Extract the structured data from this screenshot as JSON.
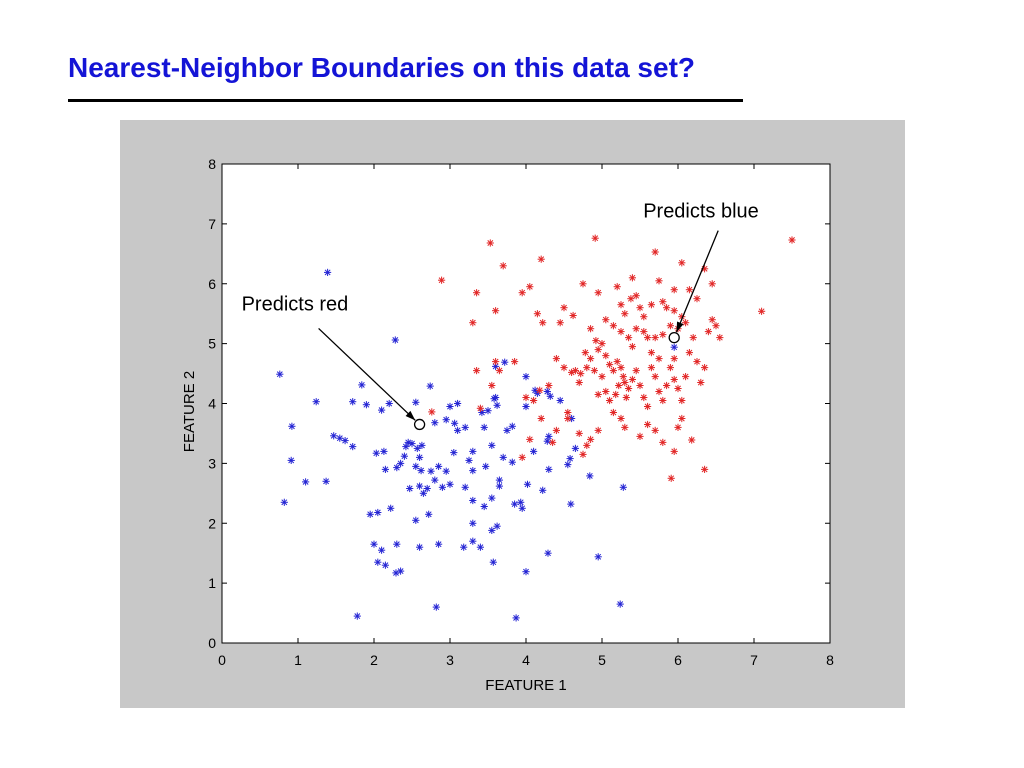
{
  "slide": {
    "title": "Nearest-Neighbor Boundaries on this data set?"
  },
  "colors": {
    "title": "#1414d6",
    "panel": "#c8c8c8",
    "plot_area": "#ffffff",
    "blue_points": "#2424d4",
    "red_points": "#e22626",
    "annotation": "#000000"
  },
  "chart_data": {
    "type": "scatter",
    "title": "",
    "xlabel": "FEATURE 1",
    "ylabel": "FEATURE 2",
    "xlim": [
      0,
      8
    ],
    "ylim": [
      0,
      8
    ],
    "xticks": [
      0,
      1,
      2,
      3,
      4,
      5,
      6,
      7,
      8
    ],
    "yticks": [
      0,
      1,
      2,
      3,
      4,
      5,
      6,
      7,
      8
    ],
    "grid": false,
    "legend": "none",
    "series": [
      {
        "marker": "asterisk",
        "color": "blue",
        "points": [
          [
            1.39,
            6.19
          ],
          [
            2.28,
            5.06
          ],
          [
            0.76,
            4.49
          ],
          [
            0.92,
            3.62
          ],
          [
            1.24,
            4.03
          ],
          [
            1.84,
            4.31
          ],
          [
            1.72,
            4.03
          ],
          [
            1.9,
            3.98
          ],
          [
            2.1,
            3.89
          ],
          [
            1.47,
            3.46
          ],
          [
            1.55,
            3.42
          ],
          [
            1.62,
            3.38
          ],
          [
            1.72,
            3.28
          ],
          [
            0.91,
            3.05
          ],
          [
            1.1,
            2.69
          ],
          [
            1.37,
            2.7
          ],
          [
            0.82,
            2.35
          ],
          [
            2.03,
            3.17
          ],
          [
            2.13,
            3.2
          ],
          [
            2.3,
            2.93
          ],
          [
            2.42,
            3.28
          ],
          [
            2.5,
            3.33
          ],
          [
            2.57,
            3.25
          ],
          [
            2.63,
            3.3
          ],
          [
            2.47,
            2.58
          ],
          [
            2.6,
            2.62
          ],
          [
            2.7,
            2.58
          ],
          [
            2.75,
            2.87
          ],
          [
            2.62,
            2.88
          ],
          [
            2.85,
            2.95
          ],
          [
            2.8,
            2.72
          ],
          [
            2.9,
            2.6
          ],
          [
            2.95,
            2.87
          ],
          [
            2.74,
            4.29
          ],
          [
            2.55,
            4.02
          ],
          [
            2.8,
            3.68
          ],
          [
            2.95,
            3.73
          ],
          [
            3.06,
            3.67
          ],
          [
            3.2,
            3.6
          ],
          [
            3.42,
            3.85
          ],
          [
            3.5,
            3.88
          ],
          [
            3.58,
            4.08
          ],
          [
            3.62,
            3.97
          ],
          [
            3.82,
            3.62
          ],
          [
            4.0,
            3.95
          ],
          [
            4.15,
            4.17
          ],
          [
            4.28,
            4.2
          ],
          [
            4.32,
            4.12
          ],
          [
            4.3,
            3.45
          ],
          [
            4.28,
            3.37
          ],
          [
            4.3,
            2.9
          ],
          [
            4.55,
            2.98
          ],
          [
            4.65,
            3.25
          ],
          [
            4.58,
            3.08
          ],
          [
            4.22,
            2.55
          ],
          [
            4.59,
            2.32
          ],
          [
            4.84,
            2.79
          ],
          [
            5.28,
            2.6
          ],
          [
            5.24,
            0.65
          ],
          [
            4.95,
            1.44
          ],
          [
            4.29,
            1.5
          ],
          [
            4.0,
            1.19
          ],
          [
            3.87,
            0.42
          ],
          [
            3.57,
            1.35
          ],
          [
            2.82,
            0.6
          ],
          [
            1.78,
            0.45
          ],
          [
            2.29,
            1.17
          ],
          [
            2.15,
            1.3
          ],
          [
            2.0,
            1.65
          ],
          [
            2.1,
            1.55
          ],
          [
            2.3,
            1.65
          ],
          [
            1.95,
            2.15
          ],
          [
            2.05,
            2.18
          ],
          [
            2.22,
            2.25
          ],
          [
            2.55,
            2.05
          ],
          [
            2.72,
            2.15
          ],
          [
            2.6,
            1.6
          ],
          [
            2.85,
            1.65
          ],
          [
            3.18,
            1.6
          ],
          [
            3.3,
            1.7
          ],
          [
            3.3,
            2.0
          ],
          [
            3.3,
            2.38
          ],
          [
            3.45,
            2.28
          ],
          [
            3.55,
            1.88
          ],
          [
            3.62,
            1.95
          ],
          [
            3.55,
            2.42
          ],
          [
            3.65,
            2.62
          ],
          [
            3.95,
            2.25
          ],
          [
            3.93,
            2.35
          ],
          [
            4.02,
            2.65
          ],
          [
            3.2,
            2.6
          ],
          [
            3.3,
            2.88
          ],
          [
            3.47,
            2.95
          ],
          [
            3.55,
            3.3
          ],
          [
            3.65,
            2.72
          ],
          [
            3.82,
            3.02
          ],
          [
            3.3,
            3.2
          ],
          [
            3.25,
            3.05
          ],
          [
            3.72,
            4.69
          ],
          [
            3.6,
            4.1
          ],
          [
            4.0,
            4.45
          ],
          [
            4.12,
            4.22
          ],
          [
            5.95,
            4.94
          ],
          [
            3.05,
            3.18
          ],
          [
            2.4,
            3.12
          ],
          [
            2.45,
            3.35
          ],
          [
            2.55,
            2.95
          ],
          [
            3.1,
            4.0
          ],
          [
            3.0,
            3.95
          ],
          [
            2.2,
            4.0
          ],
          [
            3.75,
            3.55
          ],
          [
            4.45,
            4.05
          ],
          [
            4.1,
            3.2
          ],
          [
            3.85,
            2.32
          ],
          [
            3.4,
            1.6
          ],
          [
            2.35,
            1.2
          ],
          [
            2.05,
            1.35
          ],
          [
            4.6,
            3.75
          ],
          [
            3.7,
            3.1
          ],
          [
            3.1,
            3.55
          ],
          [
            2.65,
            2.5
          ],
          [
            3.0,
            2.65
          ],
          [
            3.6,
            4.62
          ],
          [
            3.45,
            3.6
          ],
          [
            2.15,
            2.9
          ],
          [
            2.35,
            3.0
          ],
          [
            2.6,
            3.1
          ]
        ]
      },
      {
        "marker": "asterisk",
        "color": "red",
        "points": [
          [
            3.53,
            6.68
          ],
          [
            3.7,
            6.3
          ],
          [
            4.2,
            6.41
          ],
          [
            4.91,
            6.76
          ],
          [
            5.7,
            6.53
          ],
          [
            6.05,
            6.35
          ],
          [
            6.35,
            6.25
          ],
          [
            7.5,
            6.73
          ],
          [
            2.89,
            6.06
          ],
          [
            3.35,
            5.85
          ],
          [
            3.6,
            5.55
          ],
          [
            3.3,
            5.35
          ],
          [
            3.95,
            5.85
          ],
          [
            4.05,
            5.95
          ],
          [
            4.15,
            5.5
          ],
          [
            4.22,
            5.35
          ],
          [
            4.5,
            5.6
          ],
          [
            4.45,
            5.35
          ],
          [
            4.62,
            5.47
          ],
          [
            4.75,
            6.0
          ],
          [
            4.95,
            5.85
          ],
          [
            5.2,
            5.95
          ],
          [
            5.25,
            5.65
          ],
          [
            5.38,
            5.75
          ],
          [
            5.45,
            5.8
          ],
          [
            5.3,
            5.5
          ],
          [
            5.5,
            5.6
          ],
          [
            5.65,
            5.65
          ],
          [
            5.8,
            5.7
          ],
          [
            5.85,
            5.6
          ],
          [
            5.95,
            5.9
          ],
          [
            6.05,
            5.45
          ],
          [
            6.15,
            5.9
          ],
          [
            5.55,
            5.2
          ],
          [
            5.6,
            5.1
          ],
          [
            5.7,
            5.1
          ],
          [
            5.8,
            5.15
          ],
          [
            5.9,
            5.3
          ],
          [
            6.0,
            5.25
          ],
          [
            6.1,
            5.35
          ],
          [
            7.1,
            5.54
          ],
          [
            6.45,
            5.4
          ],
          [
            6.5,
            5.3
          ],
          [
            6.55,
            5.1
          ],
          [
            6.4,
            5.2
          ],
          [
            6.35,
            4.6
          ],
          [
            6.3,
            4.35
          ],
          [
            6.18,
            3.39
          ],
          [
            6.35,
            2.9
          ],
          [
            5.91,
            2.75
          ],
          [
            6.05,
            3.75
          ],
          [
            6.0,
            3.6
          ],
          [
            5.3,
            3.6
          ],
          [
            5.5,
            3.45
          ],
          [
            4.8,
            3.3
          ],
          [
            4.85,
            3.4
          ],
          [
            4.75,
            3.15
          ],
          [
            4.55,
            3.85
          ],
          [
            4.55,
            3.75
          ],
          [
            4.35,
            3.35
          ],
          [
            4.4,
            3.55
          ],
          [
            4.05,
            3.4
          ],
          [
            3.95,
            3.1
          ],
          [
            3.35,
            4.55
          ],
          [
            3.6,
            4.7
          ],
          [
            3.65,
            4.55
          ],
          [
            2.76,
            3.86
          ],
          [
            3.4,
            3.92
          ],
          [
            4.0,
            4.1
          ],
          [
            4.18,
            4.22
          ],
          [
            4.6,
            4.52
          ],
          [
            4.5,
            4.6
          ],
          [
            4.65,
            4.55
          ],
          [
            4.72,
            4.5
          ],
          [
            4.8,
            4.6
          ],
          [
            4.85,
            4.75
          ],
          [
            4.95,
            4.9
          ],
          [
            5.0,
            5.0
          ],
          [
            4.92,
            5.05
          ],
          [
            5.05,
            4.8
          ],
          [
            5.1,
            4.65
          ],
          [
            5.15,
            4.55
          ],
          [
            5.2,
            4.7
          ],
          [
            5.25,
            4.6
          ],
          [
            5.28,
            4.45
          ],
          [
            5.3,
            4.35
          ],
          [
            5.35,
            4.25
          ],
          [
            5.4,
            4.4
          ],
          [
            5.32,
            4.1
          ],
          [
            5.22,
            4.3
          ],
          [
            5.18,
            4.15
          ],
          [
            5.1,
            4.05
          ],
          [
            5.05,
            4.2
          ],
          [
            4.95,
            4.15
          ],
          [
            4.9,
            4.55
          ],
          [
            5.45,
            4.55
          ],
          [
            5.5,
            4.3
          ],
          [
            5.55,
            4.1
          ],
          [
            5.6,
            3.95
          ],
          [
            5.7,
            4.45
          ],
          [
            5.75,
            4.2
          ],
          [
            5.8,
            4.05
          ],
          [
            5.85,
            4.3
          ],
          [
            5.9,
            4.6
          ],
          [
            5.95,
            4.4
          ],
          [
            6.0,
            4.25
          ],
          [
            6.05,
            4.05
          ],
          [
            6.1,
            4.45
          ],
          [
            5.65,
            4.85
          ],
          [
            5.75,
            4.75
          ],
          [
            5.95,
            4.75
          ],
          [
            6.15,
            4.85
          ],
          [
            6.25,
            4.7
          ],
          [
            5.4,
            4.95
          ],
          [
            5.35,
            5.1
          ],
          [
            5.25,
            5.2
          ],
          [
            5.15,
            5.3
          ],
          [
            5.05,
            5.4
          ],
          [
            4.85,
            5.25
          ],
          [
            5.45,
            5.25
          ],
          [
            5.6,
            3.65
          ],
          [
            5.7,
            3.55
          ],
          [
            5.8,
            3.35
          ],
          [
            5.95,
            3.2
          ],
          [
            5.15,
            3.85
          ],
          [
            5.25,
            3.75
          ],
          [
            4.95,
            3.55
          ],
          [
            4.7,
            3.5
          ],
          [
            4.2,
            3.75
          ],
          [
            4.3,
            4.3
          ],
          [
            4.1,
            4.05
          ],
          [
            5.75,
            6.05
          ],
          [
            5.4,
            6.1
          ],
          [
            6.25,
            5.75
          ],
          [
            6.45,
            6.0
          ],
          [
            5.0,
            4.45
          ],
          [
            4.78,
            4.85
          ],
          [
            6.2,
            5.1
          ],
          [
            5.55,
            5.45
          ],
          [
            5.95,
            5.55
          ],
          [
            4.7,
            4.35
          ],
          [
            5.65,
            4.6
          ],
          [
            4.4,
            4.75
          ],
          [
            3.85,
            4.7
          ],
          [
            3.55,
            4.3
          ]
        ]
      }
    ],
    "query_points": [
      {
        "x": 2.6,
        "y": 3.65,
        "label": "Predicts red"
      },
      {
        "x": 5.95,
        "y": 5.1,
        "label": "Predicts blue"
      }
    ]
  }
}
